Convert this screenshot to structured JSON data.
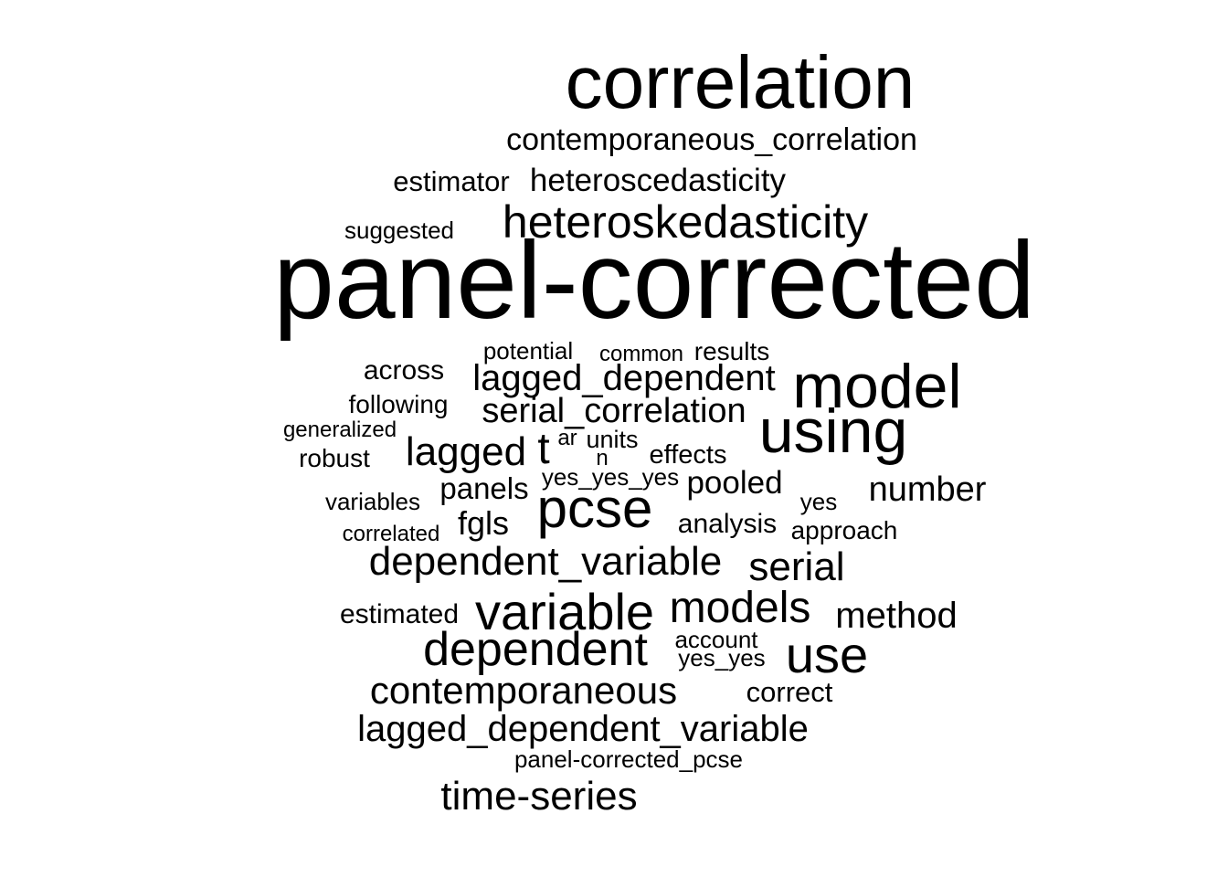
{
  "words": [
    {
      "id": "w-correlation",
      "text": "correlation"
    },
    {
      "id": "w-contemporaneous-correlation",
      "text": "contemporaneous_correlation"
    },
    {
      "id": "w-estimator",
      "text": "estimator"
    },
    {
      "id": "w-heteroscedasticity",
      "text": "heteroscedasticity"
    },
    {
      "id": "w-suggested",
      "text": "suggested"
    },
    {
      "id": "w-heteroskedasticity",
      "text": "heteroskedasticity"
    },
    {
      "id": "w-panel-corrected",
      "text": "panel-corrected"
    },
    {
      "id": "w-potential",
      "text": "potential"
    },
    {
      "id": "w-common",
      "text": "common"
    },
    {
      "id": "w-results",
      "text": "results"
    },
    {
      "id": "w-across",
      "text": "across"
    },
    {
      "id": "w-lagged-dependent",
      "text": "lagged_dependent"
    },
    {
      "id": "w-model",
      "text": "model"
    },
    {
      "id": "w-following",
      "text": "following"
    },
    {
      "id": "w-serial-correlation",
      "text": "serial_correlation"
    },
    {
      "id": "w-generalized",
      "text": "generalized"
    },
    {
      "id": "w-using",
      "text": "using"
    },
    {
      "id": "w-ar",
      "text": "ar"
    },
    {
      "id": "w-units",
      "text": "units"
    },
    {
      "id": "w-robust",
      "text": "robust"
    },
    {
      "id": "w-lagged",
      "text": "lagged"
    },
    {
      "id": "w-t",
      "text": "t"
    },
    {
      "id": "w-n",
      "text": "n"
    },
    {
      "id": "w-effects",
      "text": "effects"
    },
    {
      "id": "w-yes-yes-yes",
      "text": "yes_yes_yes"
    },
    {
      "id": "w-panels",
      "text": "panels"
    },
    {
      "id": "w-pooled",
      "text": "pooled"
    },
    {
      "id": "w-number",
      "text": "number"
    },
    {
      "id": "w-variables",
      "text": "variables"
    },
    {
      "id": "w-pcse",
      "text": "pcse"
    },
    {
      "id": "w-yes",
      "text": "yes"
    },
    {
      "id": "w-fgls",
      "text": "fgls"
    },
    {
      "id": "w-analysis",
      "text": "analysis"
    },
    {
      "id": "w-correlated",
      "text": "correlated"
    },
    {
      "id": "w-approach",
      "text": "approach"
    },
    {
      "id": "w-dependent-variable",
      "text": "dependent_variable"
    },
    {
      "id": "w-serial",
      "text": "serial"
    },
    {
      "id": "w-estimated",
      "text": "estimated"
    },
    {
      "id": "w-variable",
      "text": "variable"
    },
    {
      "id": "w-models",
      "text": "models"
    },
    {
      "id": "w-method",
      "text": "method"
    },
    {
      "id": "w-account",
      "text": "account"
    },
    {
      "id": "w-dependent",
      "text": "dependent"
    },
    {
      "id": "w-yes-yes",
      "text": "yes_yes"
    },
    {
      "id": "w-use",
      "text": "use"
    },
    {
      "id": "w-contemporaneous",
      "text": "contemporaneous"
    },
    {
      "id": "w-correct",
      "text": "correct"
    },
    {
      "id": "w-lagged-dependent-variable",
      "text": "lagged_dependent_variable"
    },
    {
      "id": "w-panel-corrected-pcse",
      "text": "panel-corrected_pcse"
    },
    {
      "id": "w-time-series",
      "text": "time-series"
    }
  ]
}
